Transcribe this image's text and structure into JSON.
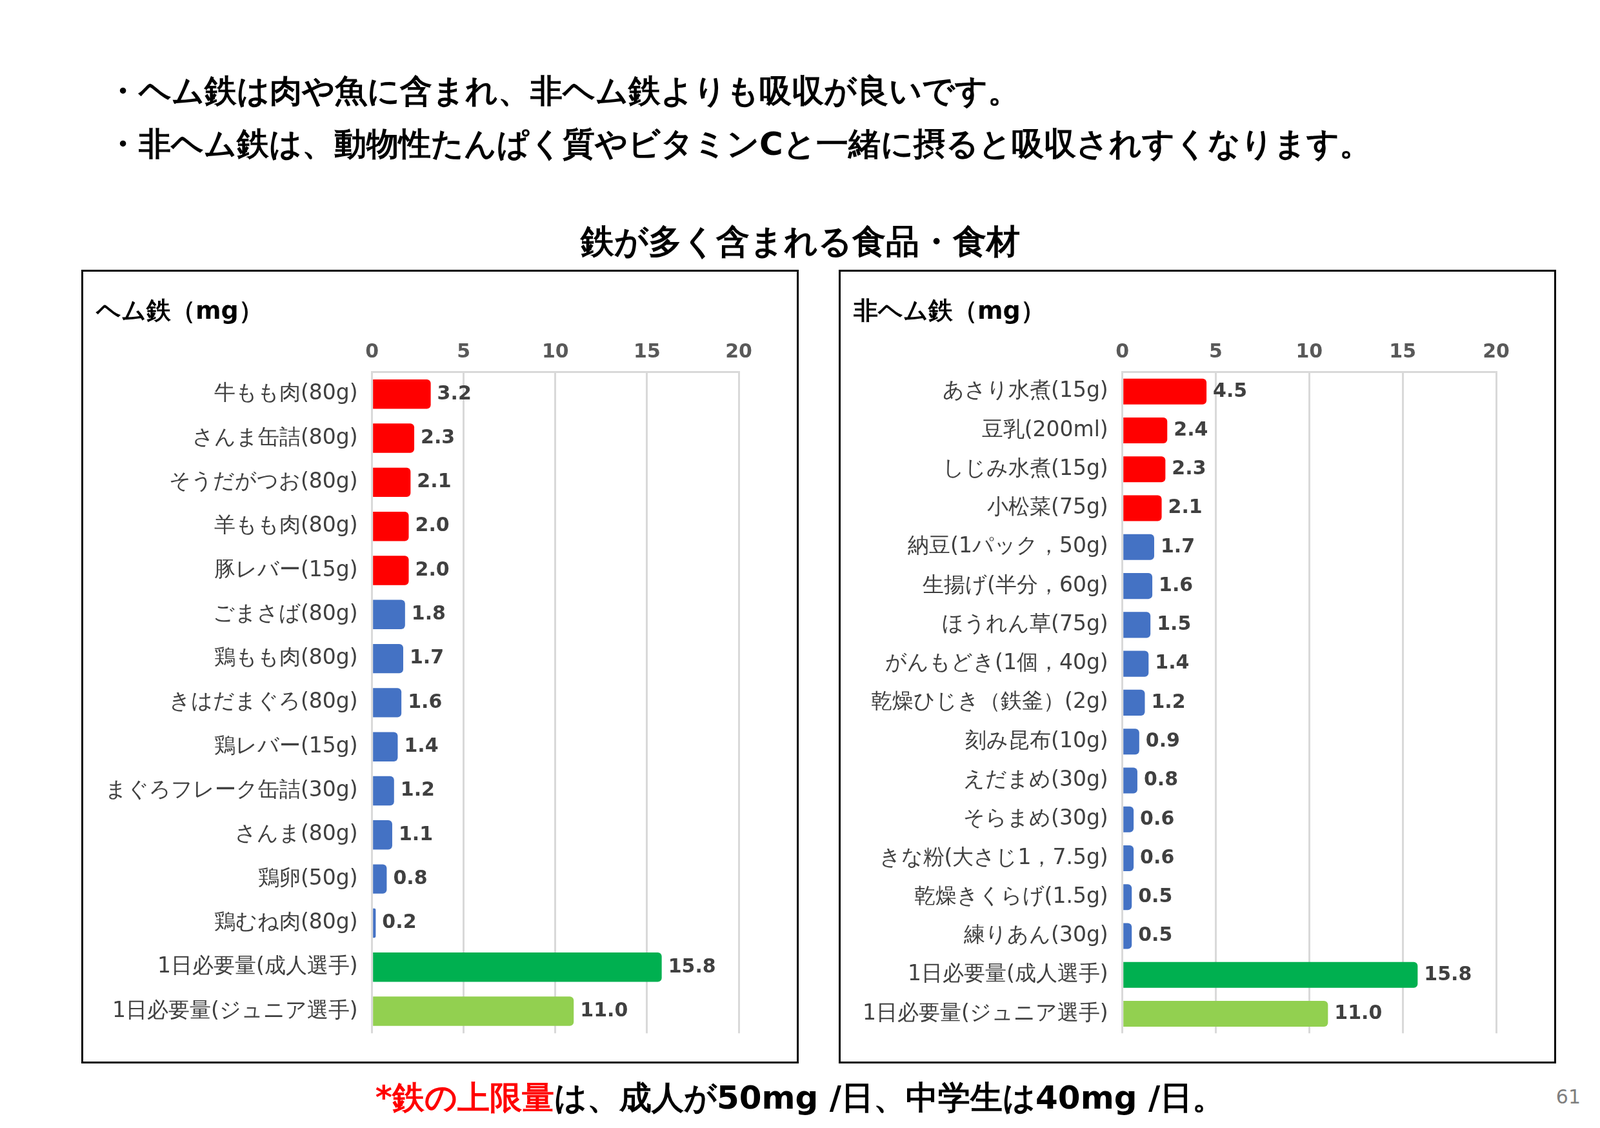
{
  "header": {
    "bullets": [
      "・ヘム鉄は肉や魚に含まれ、非ヘム鉄よりも吸収が良いです。",
      "・非ヘム鉄は、動物性たんぱく質やビタミンCと一緒に摂ると吸収されすくなります。"
    ]
  },
  "title": "鉄が多く含まれる食品・食材",
  "chart_data": [
    {
      "type": "bar",
      "title": "ヘム鉄（mg）",
      "orientation": "horizontal",
      "categories": [
        "牛もも肉(80g)",
        "さんま缶詰(80g)",
        "そうだがつお(80g)",
        "羊もも肉(80g)",
        "豚レバー(15g)",
        "ごまさば(80g)",
        "鶏もも肉(80g)",
        "きはだまぐろ(80g)",
        "鶏レバー(15g)",
        "まぐろフレーク缶詰(30g)",
        "さんま(80g)",
        "鶏卵(50g)",
        "鶏むね肉(80g)",
        "1日必要量(成人選手)",
        "1日必要量(ジュニア選手)"
      ],
      "values": [
        3.2,
        2.3,
        2.1,
        2.0,
        2.0,
        1.8,
        1.7,
        1.6,
        1.4,
        1.2,
        1.1,
        0.8,
        0.2,
        15.8,
        11.0
      ],
      "value_labels": [
        "3.2",
        "2.3",
        "2.1",
        "2.0",
        "2.0",
        "1.8",
        "1.7",
        "1.6",
        "1.4",
        "1.2",
        "1.1",
        "0.8",
        "0.2",
        "15.8",
        "11.0"
      ],
      "colors": [
        "#ff0000",
        "#ff0000",
        "#ff0000",
        "#ff0000",
        "#ff0000",
        "#4472c4",
        "#4472c4",
        "#4472c4",
        "#4472c4",
        "#4472c4",
        "#4472c4",
        "#4472c4",
        "#4472c4",
        "#00b050",
        "#92d050"
      ],
      "xlim": [
        0,
        20
      ],
      "xticks": [
        0,
        5,
        10,
        15,
        20
      ],
      "grid": true,
      "data_labels": true
    },
    {
      "type": "bar",
      "title": "非ヘム鉄（mg）",
      "orientation": "horizontal",
      "categories": [
        "あさり水煮(15g)",
        "豆乳(200ml)",
        "しじみ水煮(15g)",
        "小松菜(75g)",
        "納豆(1パック，50g)",
        "生揚げ(半分，60g)",
        "ほうれん草(75g)",
        "がんもどき(1個，40g)",
        "乾燥ひじき（鉄釜）(2g)",
        "刻み昆布(10g)",
        "えだまめ(30g)",
        "そらまめ(30g)",
        "きな粉(大さじ1，7.5g)",
        "乾燥きくらげ(1.5g)",
        "練りあん(30g)",
        "1日必要量(成人選手)",
        "1日必要量(ジュニア選手)"
      ],
      "values": [
        4.5,
        2.4,
        2.3,
        2.1,
        1.7,
        1.6,
        1.5,
        1.4,
        1.2,
        0.9,
        0.8,
        0.6,
        0.6,
        0.5,
        0.5,
        15.8,
        11.0
      ],
      "value_labels": [
        "4.5",
        "2.4",
        "2.3",
        "2.1",
        "1.7",
        "1.6",
        "1.5",
        "1.4",
        "1.2",
        "0.9",
        "0.8",
        "0.6",
        "0.6",
        "0.5",
        "0.5",
        "15.8",
        "11.0"
      ],
      "colors": [
        "#ff0000",
        "#ff0000",
        "#ff0000",
        "#ff0000",
        "#4472c4",
        "#4472c4",
        "#4472c4",
        "#4472c4",
        "#4472c4",
        "#4472c4",
        "#4472c4",
        "#4472c4",
        "#4472c4",
        "#4472c4",
        "#4472c4",
        "#00b050",
        "#92d050"
      ],
      "xlim": [
        0,
        20
      ],
      "xticks": [
        0,
        5,
        10,
        15,
        20
      ],
      "grid": true,
      "data_labels": true
    }
  ],
  "footnote": {
    "prefix": "*",
    "highlight": "鉄の上限量",
    "rest": "は、成人が50mg /日、中学生は40mg /日。"
  },
  "page_number": "61"
}
